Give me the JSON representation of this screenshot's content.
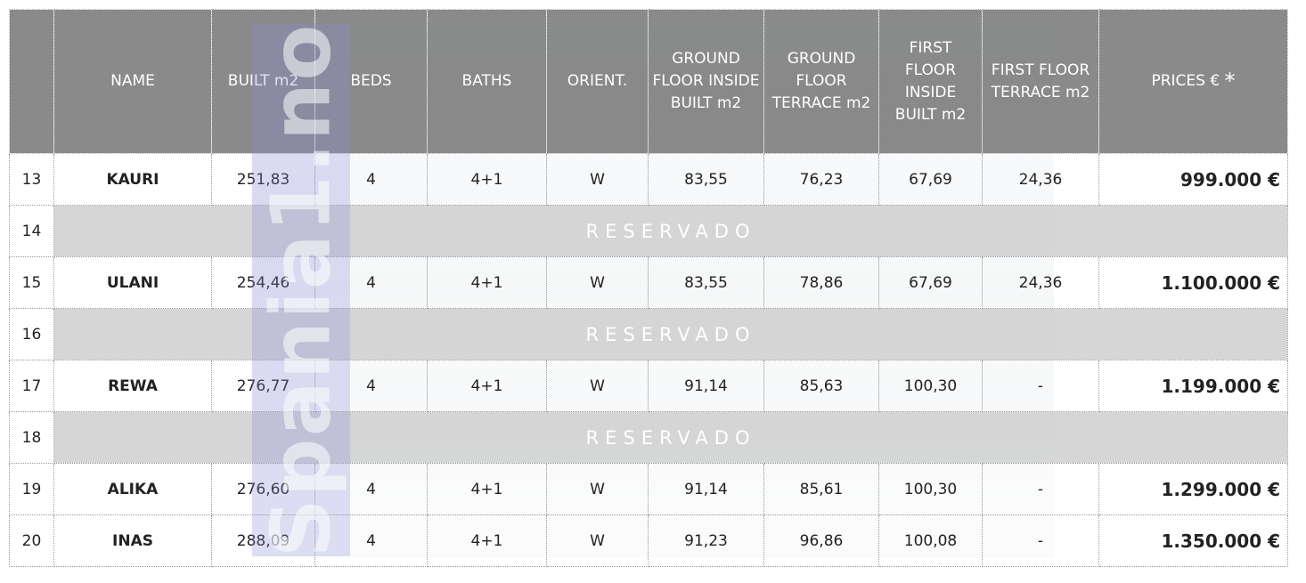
{
  "watermark": "Spania1.no",
  "table": {
    "header": [
      "",
      "NAME",
      "BUILT m2",
      "BEDS",
      "BATHS",
      "ORIENT.",
      "GROUND FLOOR INSIDE BUILT m2",
      "GROUND FLOOR TERRACE m2",
      "FIRST FLOOR INSIDE BUILT m2",
      "FIRST FLOOR TERRACE m2",
      "PRICES  €"
    ],
    "price_note": "*",
    "rows": [
      [
        "13",
        "KAURI",
        "251,83",
        "4",
        "4+1",
        "W",
        "83,55",
        "76,23",
        "67,69",
        "24,36",
        "999.000 €"
      ],
      [
        "14",
        "RESERVADO"
      ],
      [
        "15",
        "ULANI",
        "254,46",
        "4",
        "4+1",
        "W",
        "83,55",
        "78,86",
        "67,69",
        "24,36",
        "1.100.000 €"
      ],
      [
        "16",
        "RESERVADO"
      ],
      [
        "17",
        "REWA",
        "276,77",
        "4",
        "4+1",
        "W",
        "91,14",
        "85,63",
        "100,30",
        "-",
        "1.199.000 €"
      ],
      [
        "18",
        "RESERVADO"
      ],
      [
        "19",
        "ALIKA",
        "276,60",
        "4",
        "4+1",
        "W",
        "91,14",
        "85,61",
        "100,30",
        "-",
        "1.299.000 €"
      ],
      [
        "20",
        "INAS",
        "288,09",
        "4",
        "4+1",
        "W",
        "91,23",
        "96,86",
        "100,08",
        "-",
        "1.350.000 €"
      ]
    ]
  }
}
